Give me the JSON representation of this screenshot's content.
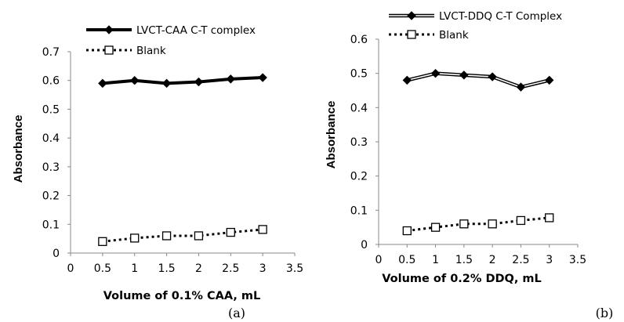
{
  "chart_data": [
    {
      "type": "line",
      "panel_label": "(a)",
      "x": [
        0.5,
        1,
        1.5,
        2,
        2.5,
        3
      ],
      "xlim": [
        0,
        3.5
      ],
      "ylim": [
        0,
        0.7
      ],
      "x_ticks": [
        "0",
        "0.5",
        "1",
        "1.5",
        "2",
        "2.5",
        "3",
        "3.5"
      ],
      "y_ticks": [
        "0",
        "0.1",
        "0.2",
        "0.3",
        "0.4",
        "0.5",
        "0.6",
        "0.7"
      ],
      "xlabel": "Volume of 0.1% CAA, mL",
      "ylabel": "Absorbance",
      "grid": false,
      "legend_position": "top",
      "series": [
        {
          "name": "LVCT-CAA C-T complex",
          "style": "thick-solid-diamond",
          "color": "#000000",
          "values": [
            0.59,
            0.6,
            0.59,
            0.595,
            0.605,
            0.61
          ]
        },
        {
          "name": "Blank",
          "style": "dotted-open-square",
          "color": "#000000",
          "values": [
            0.04,
            0.052,
            0.06,
            0.06,
            0.072,
            0.082
          ]
        }
      ]
    },
    {
      "type": "line",
      "panel_label": "(b)",
      "x": [
        0.5,
        1,
        1.5,
        2,
        2.5,
        3
      ],
      "xlim": [
        0,
        3.5
      ],
      "ylim": [
        0,
        0.6
      ],
      "x_ticks": [
        "0",
        "0.5",
        "1",
        "1.5",
        "2",
        "2.5",
        "3",
        "3.5"
      ],
      "y_ticks": [
        "0",
        "0.1",
        "0.2",
        "0.3",
        "0.4",
        "0.5",
        "0.6"
      ],
      "xlabel": "Volume of 0.2% DDQ, mL",
      "ylabel": "Absorbance",
      "grid": false,
      "legend_position": "top",
      "series": [
        {
          "name": "LVCT-DDQ C-T Complex",
          "style": "double-line-diamond",
          "color": "#000000",
          "values": [
            0.48,
            0.5,
            0.495,
            0.49,
            0.46,
            0.48
          ]
        },
        {
          "name": "Blank",
          "style": "dotted-open-square",
          "color": "#000000",
          "values": [
            0.04,
            0.05,
            0.06,
            0.06,
            0.07,
            0.078
          ]
        }
      ]
    }
  ]
}
